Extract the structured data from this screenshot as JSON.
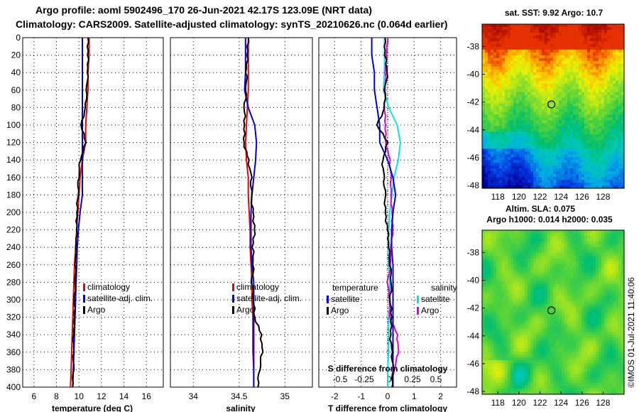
{
  "title_line1": "Argo profile: aoml 5902496_170 26-Jun-2021 42.17S 123.09E (NRT data)",
  "title_line2": "Climatology: CARS2009. Satellite-adjusted climatology: synTS_20210626.nc (0.064d earlier)",
  "timestamp": "©IMOS 01-Jul-2021 11:40:06",
  "colors": {
    "climatology": "#ee0000",
    "satellite": "#0000dd",
    "argo": "#000000",
    "salinity_sat": "#00e5ee",
    "salinity_diff": "#dd00dd"
  },
  "depth_ticks": [
    "0",
    "20",
    "40",
    "60",
    "80",
    "100",
    "120",
    "140",
    "160",
    "180",
    "200",
    "220",
    "240",
    "260",
    "280",
    "300",
    "320",
    "340",
    "360",
    "380",
    "400"
  ],
  "chart_data": [
    {
      "type": "line",
      "name": "temperature",
      "xlabel": "temperature (deg C)",
      "xlim": [
        5,
        17.5
      ],
      "ylim": [
        400,
        0
      ],
      "xticks": [
        "6",
        "8",
        "10",
        "12",
        "14",
        "16"
      ],
      "legend": [
        "climatology",
        "satellite-adj. clim.",
        "Argo"
      ],
      "depth": [
        0,
        20,
        40,
        60,
        80,
        100,
        120,
        140,
        160,
        180,
        200,
        220,
        240,
        260,
        280,
        300,
        320,
        340,
        360,
        380,
        400
      ],
      "series": [
        {
          "name": "climatology",
          "values": [
            10.9,
            10.9,
            10.8,
            10.8,
            10.7,
            10.6,
            10.6,
            10.3,
            10.1,
            10.0,
            9.9,
            9.8,
            9.7,
            9.6,
            9.55,
            9.5,
            9.45,
            9.4,
            9.35,
            9.3,
            9.25
          ]
        },
        {
          "name": "satellite-adj. clim.",
          "values": [
            10.3,
            10.3,
            10.3,
            10.3,
            10.3,
            10.3,
            10.3,
            10.3,
            10.3,
            10.3,
            10.1,
            9.95,
            9.85,
            9.8,
            9.75,
            9.7,
            9.65,
            9.6,
            9.55,
            9.5,
            9.45
          ]
        },
        {
          "name": "Argo",
          "values": [
            10.8,
            10.8,
            10.8,
            10.7,
            10.6,
            10.2,
            10.6,
            10.1,
            9.95,
            9.9,
            9.8,
            9.8,
            9.75,
            9.7,
            9.7,
            9.6,
            9.6,
            9.5,
            9.5,
            9.5,
            9.4
          ]
        }
      ]
    },
    {
      "type": "line",
      "name": "salinity",
      "xlabel": "salinity",
      "xlim": [
        33.75,
        35.3
      ],
      "ylim": [
        400,
        0
      ],
      "xticks": [
        "34",
        "34.5",
        "35"
      ],
      "legend": [
        "climatology",
        "satellite-adj. clim.",
        "Argo"
      ],
      "depth": [
        0,
        20,
        40,
        60,
        80,
        100,
        120,
        140,
        160,
        180,
        200,
        220,
        240,
        260,
        280,
        300,
        320,
        340,
        360,
        380,
        400
      ],
      "series": [
        {
          "name": "climatology",
          "values": [
            34.6,
            34.6,
            34.6,
            34.6,
            34.59,
            34.58,
            34.57,
            34.58,
            34.6,
            34.6,
            34.61,
            34.62,
            34.62,
            34.63,
            34.64,
            34.64,
            34.65,
            34.65,
            34.65,
            34.66,
            34.66
          ]
        },
        {
          "name": "satellite-adj. clim.",
          "values": [
            34.57,
            34.57,
            34.57,
            34.56,
            34.6,
            34.67,
            34.69,
            34.68,
            34.66,
            34.64,
            34.63,
            34.63,
            34.63,
            34.64,
            34.66,
            34.66,
            34.66,
            34.66,
            34.66,
            34.66,
            34.66
          ]
        },
        {
          "name": "Argo",
          "values": [
            34.6,
            34.59,
            34.58,
            34.58,
            34.56,
            34.56,
            34.55,
            34.6,
            34.63,
            34.63,
            34.65,
            34.67,
            34.65,
            34.66,
            34.64,
            34.66,
            34.67,
            34.74,
            34.75,
            34.72,
            34.7
          ]
        }
      ]
    },
    {
      "type": "line",
      "name": "differences",
      "xlabel": "T difference from climatology",
      "xlabel_top": "S difference from climatology",
      "xlim": [
        -2.6,
        2.6
      ],
      "ylim": [
        400,
        0
      ],
      "xticks": [
        "-2",
        "-1",
        "0",
        "1",
        "2"
      ],
      "xticks_top": [
        "-0.5",
        "-0.25",
        "0",
        "0.25",
        "0.5"
      ],
      "legend_temperature": {
        "title": "temperature",
        "items": [
          "satellite",
          "Argo"
        ]
      },
      "legend_salinity": {
        "title": "salinity",
        "items": [
          "satellite",
          "Argo"
        ]
      },
      "depth": [
        0,
        20,
        40,
        60,
        80,
        100,
        120,
        140,
        160,
        180,
        200,
        220,
        240,
        260,
        280,
        300,
        320,
        340,
        360,
        380,
        400
      ],
      "series": [
        {
          "name": "T satellite",
          "values": [
            -0.6,
            -0.6,
            -0.5,
            -0.5,
            -0.4,
            -0.3,
            -0.3,
            0.0,
            0.2,
            0.3,
            0.2,
            0.15,
            0.15,
            0.2,
            0.2,
            0.2,
            0.2,
            0.2,
            0.2,
            0.2,
            0.2
          ]
        },
        {
          "name": "T Argo",
          "values": [
            -0.1,
            -0.1,
            0.0,
            -0.1,
            -0.1,
            -0.4,
            0.0,
            -0.2,
            -0.15,
            -0.1,
            -0.1,
            0.0,
            0.05,
            0.1,
            0.15,
            0.1,
            0.15,
            0.1,
            0.15,
            0.2,
            0.15
          ]
        },
        {
          "name": "S satellite",
          "values": [
            -0.03,
            -0.03,
            -0.03,
            -0.04,
            0.01,
            0.09,
            0.12,
            0.1,
            0.06,
            0.04,
            0.02,
            0.01,
            0.01,
            0.01,
            0.02,
            0.02,
            0.01,
            0.01,
            0.01,
            0.0,
            0.0
          ]
        },
        {
          "name": "S Argo",
          "values": [
            0.0,
            -0.01,
            -0.02,
            -0.02,
            -0.03,
            -0.02,
            -0.02,
            0.02,
            0.03,
            0.03,
            0.04,
            0.05,
            0.03,
            0.03,
            0.0,
            0.02,
            0.02,
            0.09,
            0.1,
            0.06,
            0.04
          ]
        }
      ]
    },
    {
      "type": "heatmap",
      "name": "sst-map",
      "title": "sat. SST: 9.92 Argo: 10.7",
      "xticks": [
        "118",
        "120",
        "122",
        "124",
        "126",
        "128"
      ],
      "yticks": [
        "-38",
        "-40",
        "-42",
        "-44",
        "-46",
        "-48"
      ],
      "xlim": [
        116.5,
        130
      ],
      "ylim": [
        -48.2,
        -36.4
      ],
      "marker": {
        "lon": 123.09,
        "lat": -42.17
      }
    },
    {
      "type": "heatmap",
      "name": "sla-map",
      "title": "Altim. SLA: 0.075",
      "subtitle": "Argo h1000: 0.014 h2000: 0.035",
      "xticks": [
        "118",
        "120",
        "122",
        "124",
        "126",
        "128"
      ],
      "yticks": [
        "-38",
        "-40",
        "-42",
        "-44",
        "-46",
        "-48"
      ],
      "xlim": [
        116.5,
        130
      ],
      "ylim": [
        -48.2,
        -36.4
      ],
      "marker": {
        "lon": 123.09,
        "lat": -42.17
      }
    }
  ]
}
